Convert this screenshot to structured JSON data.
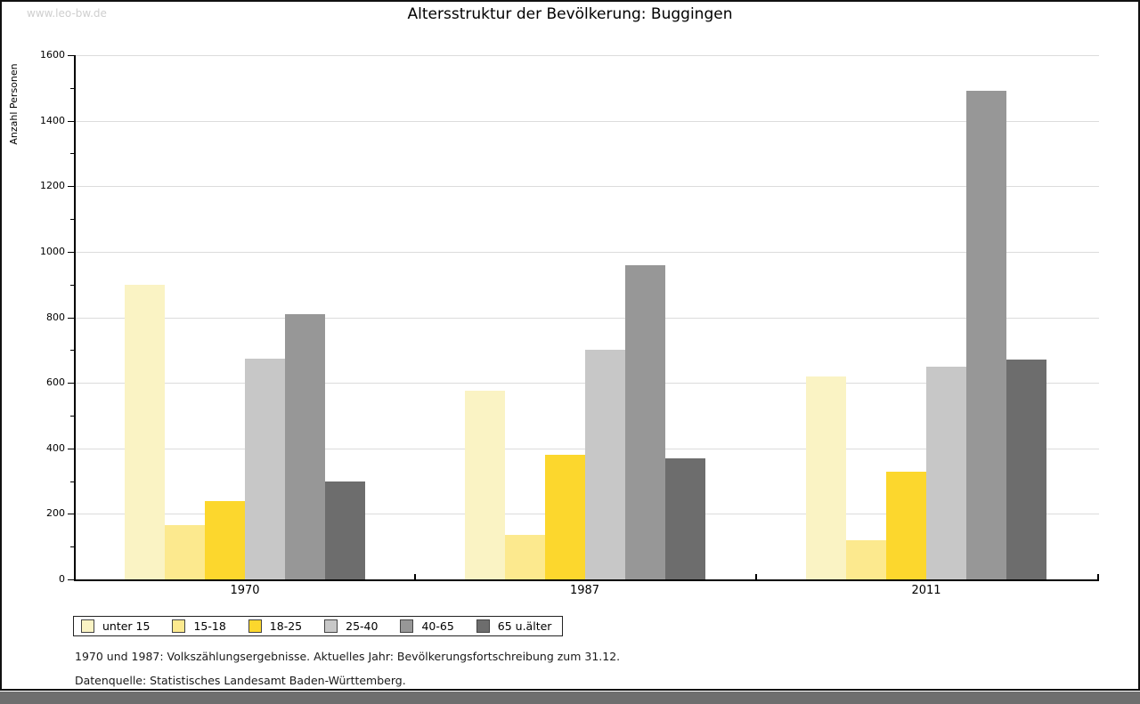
{
  "watermark": "www.leo-bw.de",
  "header": {
    "title": "Altersstruktur der Bevölkerung: Buggingen"
  },
  "footer": {
    "line1": "1970 und 1987: Volkszählungsergebnisse. Aktuelles Jahr: Bevölkerungsfortschreibung zum 31.12.",
    "line2": "Datenquelle: Statistisches Landesamt Baden-Württemberg."
  },
  "chart_data": {
    "type": "bar",
    "title": "Altersstruktur der Bevölkerung: Buggingen",
    "xlabel": "",
    "ylabel": "Anzahl Personen",
    "categories": [
      "1970",
      "1987",
      "2011"
    ],
    "series": [
      {
        "name": "unter 15",
        "color": "#FAF3C4",
        "values": [
          900,
          575,
          620
        ]
      },
      {
        "name": "15-18",
        "color": "#FCE98E",
        "values": [
          165,
          135,
          120
        ]
      },
      {
        "name": "18-25",
        "color": "#FCD72D",
        "values": [
          240,
          380,
          330
        ]
      },
      {
        "name": "25-40",
        "color": "#C7C7C7",
        "values": [
          675,
          700,
          650
        ]
      },
      {
        "name": "40-65",
        "color": "#979797",
        "values": [
          810,
          960,
          1490
        ]
      },
      {
        "name": "65 u.älter",
        "color": "#6D6D6D",
        "values": [
          300,
          370,
          670
        ]
      }
    ],
    "ylim": [
      0,
      1600
    ],
    "ytick_step": 200,
    "ytick_minor_step": 100,
    "grid": true,
    "gridline_color": "#dcdcdc",
    "legend_position": "bottom"
  }
}
